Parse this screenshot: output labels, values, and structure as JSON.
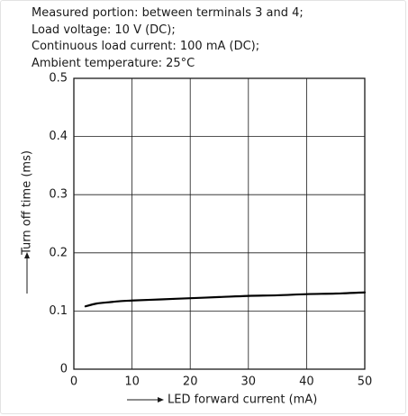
{
  "conditions": [
    "Measured portion: between terminals 3 and 4;",
    "Load voltage: 10 V (DC);",
    "Continuous load current: 100 mA (DC);",
    "Ambient temperature: 25°C"
  ],
  "chart_data": {
    "type": "line",
    "xlabel": "LED forward current (mA)",
    "ylabel": "Turn off time (ms)",
    "xlim": [
      0,
      50
    ],
    "ylim": [
      0,
      0.5
    ],
    "xticks": [
      0,
      10,
      20,
      30,
      40,
      50
    ],
    "yticks": [
      0,
      0.1,
      0.2,
      0.3,
      0.4,
      0.5
    ],
    "ytick_labels": [
      "0",
      "0.1",
      "0.2",
      "0.3",
      "0.4",
      "0.5"
    ],
    "grid": true,
    "series": [
      {
        "x": [
          2,
          4,
          6,
          8,
          10,
          15,
          20,
          25,
          30,
          35,
          40,
          45,
          50
        ],
        "y": [
          0.108,
          0.113,
          0.115,
          0.117,
          0.118,
          0.12,
          0.122,
          0.124,
          0.126,
          0.127,
          0.129,
          0.13,
          0.132
        ]
      }
    ]
  }
}
